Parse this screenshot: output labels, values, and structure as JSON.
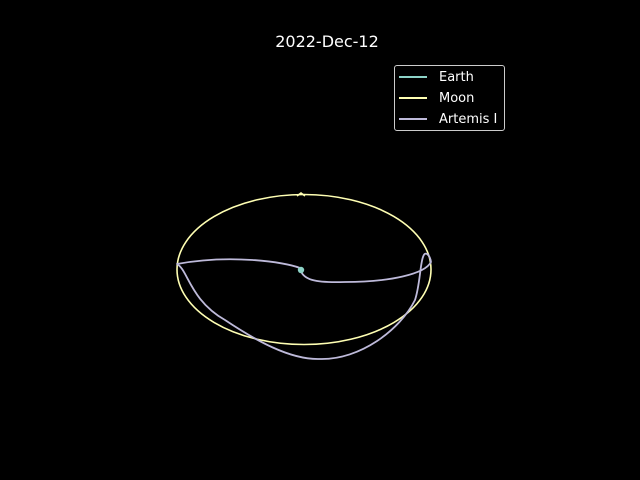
{
  "chart_data": {
    "type": "line",
    "title": "2022-Dec-12",
    "background": "#000000",
    "axes_visible": false,
    "legend_position": "top-right",
    "series": [
      {
        "name": "Earth",
        "color": "#8dd3c7",
        "marker": true,
        "points": [
          [
            0,
            0
          ]
        ]
      },
      {
        "name": "Moon",
        "color": "#ffffb3"
      },
      {
        "name": "Artemis I",
        "color": "#bebada"
      }
    ]
  }
}
